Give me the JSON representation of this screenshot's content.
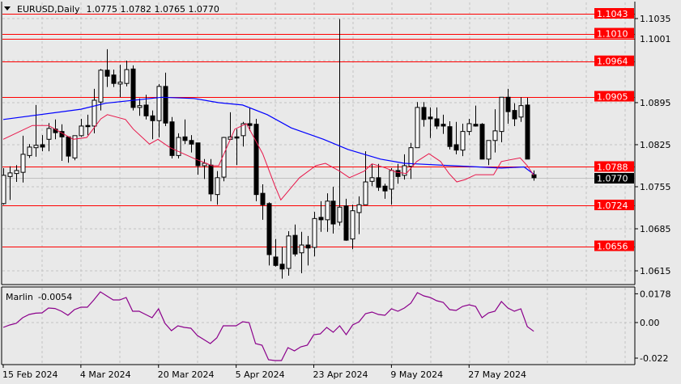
{
  "header": {
    "symbol_label": "EURUSD,Daily",
    "ohlc_label": "1.0775 1.0782 1.0765 1.0770"
  },
  "colors": {
    "background": "#e9e9e9",
    "level_line": "#ff0000",
    "fast_ma": "#e8174a",
    "slow_ma": "#0000ff",
    "oscillator": "#8b008b",
    "price_label_bg": "#000000"
  },
  "chart_data": {
    "type": "candlestick",
    "title": "EURUSD,Daily",
    "ylim": [
      1.0615,
      1.1043
    ],
    "grid": true,
    "ohlc_order": [
      "open",
      "high",
      "low",
      "close"
    ],
    "candles": [
      [
        1.0727,
        1.0786,
        1.0725,
        1.0774
      ],
      [
        1.0772,
        1.0789,
        1.0733,
        1.0778
      ],
      [
        1.0777,
        1.0791,
        1.0763,
        1.0782
      ],
      [
        1.0779,
        1.084,
        1.0762,
        1.0809
      ],
      [
        1.0807,
        1.0826,
        1.0803,
        1.0821
      ],
      [
        1.082,
        1.0891,
        1.0805,
        1.0824
      ],
      [
        1.0825,
        1.0841,
        1.0814,
        1.0821
      ],
      [
        1.0834,
        1.0861,
        1.0814,
        1.0852
      ],
      [
        1.0851,
        1.0867,
        1.0834,
        1.0845
      ],
      [
        1.0847,
        1.0859,
        1.0798,
        1.0838
      ],
      [
        1.0838,
        1.0839,
        1.0795,
        1.0806
      ],
      [
        1.0803,
        1.084,
        1.0799,
        1.084
      ],
      [
        1.084,
        1.0868,
        1.0838,
        1.0856
      ],
      [
        1.0857,
        1.0875,
        1.0841,
        1.0855
      ],
      [
        1.0856,
        1.0918,
        1.0844,
        1.0899
      ],
      [
        1.0896,
        1.0951,
        1.0882,
        1.0949
      ],
      [
        1.0949,
        1.0984,
        1.0921,
        1.0939
      ],
      [
        1.0941,
        1.095,
        1.0921,
        1.0927
      ],
      [
        1.0926,
        1.0958,
        1.0904,
        1.0929
      ],
      [
        1.0927,
        1.0965,
        1.0922,
        1.095
      ],
      [
        1.0951,
        1.0957,
        1.0882,
        1.0887
      ],
      [
        1.0887,
        1.0902,
        1.0873,
        1.089
      ],
      [
        1.0891,
        1.0908,
        1.0867,
        1.0873
      ],
      [
        1.0873,
        1.0882,
        1.0834,
        1.0865
      ],
      [
        1.0865,
        1.0926,
        1.0837,
        1.0922
      ],
      [
        1.0922,
        1.0945,
        1.0856,
        1.0861
      ],
      [
        1.0863,
        1.0871,
        1.0802,
        1.0807
      ],
      [
        1.0807,
        1.0844,
        1.0802,
        1.0837
      ],
      [
        1.0838,
        1.0867,
        1.0826,
        1.0832
      ],
      [
        1.0832,
        1.0841,
        1.0812,
        1.0826
      ],
      [
        1.0828,
        1.0828,
        1.0775,
        1.079
      ],
      [
        1.079,
        1.0801,
        1.0768,
        1.0794
      ],
      [
        1.0791,
        1.0801,
        1.0731,
        1.0743
      ],
      [
        1.0742,
        1.0781,
        1.0725,
        1.077
      ],
      [
        1.0771,
        1.0838,
        1.0764,
        1.0837
      ],
      [
        1.0834,
        1.0879,
        1.0833,
        1.0838
      ],
      [
        1.0838,
        1.0851,
        1.0791,
        1.0836
      ],
      [
        1.084,
        1.0863,
        1.0822,
        1.086
      ],
      [
        1.086,
        1.0887,
        1.0848,
        1.0857
      ],
      [
        1.0859,
        1.0868,
        1.0731,
        1.0742
      ],
      [
        1.0744,
        1.0759,
        1.07,
        1.0725
      ],
      [
        1.0727,
        1.0729,
        1.0624,
        1.0642
      ],
      [
        1.0638,
        1.0668,
        1.0622,
        1.0624
      ],
      [
        1.0626,
        1.0655,
        1.0602,
        1.0618
      ],
      [
        1.0619,
        1.0681,
        1.0607,
        1.0673
      ],
      [
        1.0674,
        1.0692,
        1.0639,
        1.0643
      ],
      [
        1.0645,
        1.068,
        1.0611,
        1.0658
      ],
      [
        1.0658,
        1.0673,
        1.0624,
        1.0653
      ],
      [
        1.0654,
        1.0713,
        1.0639,
        1.0702
      ],
      [
        1.0704,
        1.0731,
        1.068,
        1.07
      ],
      [
        1.07,
        1.0744,
        1.068,
        1.0731
      ],
      [
        1.0731,
        1.0755,
        1.0677,
        1.0693
      ],
      [
        1.0696,
        1.1034,
        1.069,
        1.0721
      ],
      [
        1.0723,
        1.0735,
        1.0665,
        1.0666
      ],
      [
        1.0668,
        1.0725,
        1.0651,
        1.0715
      ],
      [
        1.0712,
        1.0739,
        1.0676,
        1.0725
      ],
      [
        1.0725,
        1.0814,
        1.0725,
        1.0763
      ],
      [
        1.0764,
        1.0793,
        1.0756,
        1.077
      ],
      [
        1.077,
        1.0793,
        1.0748,
        1.0754
      ],
      [
        1.0756,
        1.076,
        1.0735,
        1.0748
      ],
      [
        1.0751,
        1.0786,
        1.0725,
        1.0782
      ],
      [
        1.0782,
        1.0793,
        1.076,
        1.0772
      ],
      [
        1.0774,
        1.0809,
        1.0767,
        1.079
      ],
      [
        1.0789,
        1.0828,
        1.0768,
        1.082
      ],
      [
        1.082,
        1.0896,
        1.082,
        1.0887
      ],
      [
        1.0887,
        1.0896,
        1.0855,
        1.0867
      ],
      [
        1.0871,
        1.0887,
        1.0836,
        1.0868
      ],
      [
        1.0868,
        1.0887,
        1.0851,
        1.0856
      ],
      [
        1.0859,
        1.0875,
        1.0843,
        1.0856
      ],
      [
        1.0855,
        1.0864,
        1.0817,
        1.0822
      ],
      [
        1.0825,
        1.0863,
        1.0809,
        1.0816
      ],
      [
        1.0816,
        1.086,
        1.0806,
        1.0847
      ],
      [
        1.0847,
        1.0868,
        1.0841,
        1.086
      ],
      [
        1.0859,
        1.089,
        1.0855,
        1.0856
      ],
      [
        1.0859,
        1.0861,
        1.0801,
        1.0801
      ],
      [
        1.0801,
        1.0832,
        1.0791,
        1.0832
      ],
      [
        1.0832,
        1.0884,
        1.0812,
        1.0848
      ],
      [
        1.0847,
        1.0904,
        1.0829,
        1.0904
      ],
      [
        1.0904,
        1.0918,
        1.086,
        1.088
      ],
      [
        1.0882,
        1.0894,
        1.0856,
        1.0868
      ],
      [
        1.0871,
        1.0904,
        1.0863,
        1.089
      ],
      [
        1.0891,
        1.0903,
        1.0801,
        1.0801
      ],
      [
        1.0775,
        1.0782,
        1.0765,
        1.077
      ]
    ],
    "fast_ma": [
      [
        0,
        1.0834
      ],
      [
        4.5,
        1.0857
      ],
      [
        7,
        1.0857
      ],
      [
        10.8,
        1.0834
      ],
      [
        12.9,
        1.0837
      ],
      [
        15.1,
        1.0868
      ],
      [
        16.1,
        1.0875
      ],
      [
        18.9,
        1.0867
      ],
      [
        20.1,
        1.0851
      ],
      [
        22.6,
        1.0826
      ],
      [
        23.9,
        1.0834
      ],
      [
        25.8,
        1.082
      ],
      [
        29.5,
        1.0802
      ],
      [
        32.3,
        1.079
      ],
      [
        33.3,
        1.079
      ],
      [
        35.8,
        1.0851
      ],
      [
        37.6,
        1.086
      ],
      [
        40.1,
        1.081
      ],
      [
        42,
        1.0756
      ],
      [
        42.9,
        1.0733
      ],
      [
        45.8,
        1.077
      ],
      [
        48.3,
        1.079
      ],
      [
        49.8,
        1.0794
      ],
      [
        52,
        1.0781
      ],
      [
        53.5,
        1.077
      ],
      [
        55.8,
        1.0781
      ],
      [
        57,
        1.0793
      ],
      [
        58.9,
        1.0787
      ],
      [
        60.8,
        1.0779
      ],
      [
        62.3,
        1.0777
      ],
      [
        63.9,
        1.0797
      ],
      [
        65.8,
        1.081
      ],
      [
        67.6,
        1.0797
      ],
      [
        68.9,
        1.0777
      ],
      [
        70.1,
        1.0763
      ],
      [
        71.4,
        1.0767
      ],
      [
        73,
        1.0775
      ],
      [
        75.8,
        1.0775
      ],
      [
        77,
        1.0797
      ],
      [
        79.9,
        1.0803
      ],
      [
        81,
        1.079
      ],
      [
        82,
        1.0774
      ]
    ],
    "slow_ma": [
      [
        0,
        1.0867
      ],
      [
        12,
        1.0884
      ],
      [
        15.8,
        1.0894
      ],
      [
        24.5,
        1.0904
      ],
      [
        29.5,
        1.0902
      ],
      [
        33.3,
        1.0895
      ],
      [
        37,
        1.0891
      ],
      [
        40.8,
        1.0875
      ],
      [
        44.5,
        1.0853
      ],
      [
        49.5,
        1.0834
      ],
      [
        53.3,
        1.0817
      ],
      [
        58.3,
        1.0801
      ],
      [
        62,
        1.0794
      ],
      [
        69.5,
        1.079
      ],
      [
        77,
        1.0786
      ],
      [
        80.5,
        1.0788
      ],
      [
        82,
        1.0776
      ]
    ],
    "price_axis_ticks": [
      "1.1035",
      "1.0895",
      "1.0825",
      "1.0755",
      "1.0685",
      "1.0615"
    ],
    "levels": [
      {
        "value": 1.1043,
        "label": "1.1043"
      },
      {
        "value": 1.101,
        "label": "1.1010"
      },
      {
        "value": 1.1001,
        "label": "1.1001"
      },
      {
        "value": 1.0964,
        "label": "1.0964"
      },
      {
        "value": 1.0905,
        "label": "1.0905"
      },
      {
        "value": 1.0788,
        "label": "1.0788"
      },
      {
        "value": 1.0724,
        "label": "1.0724"
      },
      {
        "value": 1.0656,
        "label": "1.0656"
      }
    ],
    "current_price": {
      "value": 1.077,
      "label": "1.0770"
    },
    "time_labels": [
      {
        "index": 0,
        "label": "15 Feb 2024"
      },
      {
        "index": 12,
        "label": "4 Mar 2024"
      },
      {
        "index": 24,
        "label": "20 Mar 2024"
      },
      {
        "index": 36,
        "label": "5 Apr 2024"
      },
      {
        "index": 48,
        "label": "23 Apr 2024"
      },
      {
        "index": 60,
        "label": "9 May 2024"
      },
      {
        "index": 72,
        "label": "27 May 2024"
      }
    ],
    "indicator": {
      "name": "Marlin",
      "value_label": "-0.0054",
      "ylim": [
        -0.022,
        0.0178
      ],
      "axis_ticks": [
        "0.0178",
        "0.00",
        "-0.022"
      ],
      "values": [
        -0.003,
        -0.0015,
        -0.0005,
        0.003,
        0.005,
        0.0058,
        0.006,
        0.009,
        0.0087,
        0.007,
        0.0045,
        0.008,
        0.0095,
        0.0095,
        0.014,
        0.019,
        0.0165,
        0.014,
        0.014,
        0.0155,
        0.007,
        0.007,
        0.005,
        0.003,
        0.0085,
        -0.0005,
        -0.005,
        -0.002,
        -0.003,
        -0.0035,
        -0.008,
        -0.0105,
        -0.013,
        -0.0095,
        -0.002,
        -0.002,
        -0.002,
        0.0005,
        0,
        -0.013,
        -0.014,
        -0.023,
        -0.0235,
        -0.0235,
        -0.0155,
        -0.0175,
        -0.015,
        -0.014,
        -0.0075,
        -0.007,
        -0.003,
        -0.006,
        -0.002,
        -0.0075,
        -0.0015,
        0.0005,
        0.0055,
        0.0065,
        0.005,
        0.0045,
        0.0085,
        0.007,
        0.009,
        0.012,
        0.0185,
        0.0165,
        0.0155,
        0.0135,
        0.0125,
        0.008,
        0.0075,
        0.01,
        0.011,
        0.01,
        0.003,
        0.006,
        0.007,
        0.013,
        0.009,
        0.007,
        0.0085,
        -0.0025,
        -0.0054
      ]
    }
  }
}
